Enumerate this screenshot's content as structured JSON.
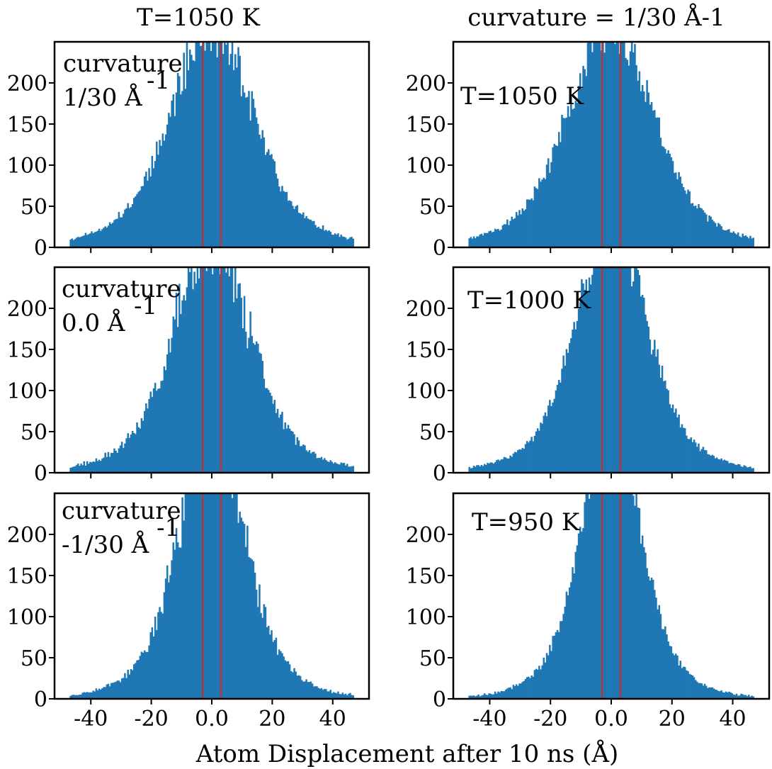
{
  "figure": {
    "column_titles": [
      "T=1050 K",
      "curvature = 1/30 Å-1"
    ],
    "xlabel": "Atom Displacement after 10 ns (Å)"
  },
  "colors": {
    "bar": "#1f77b4",
    "marker_line": "#d62728",
    "axis": "#000000"
  },
  "chart_data": [
    {
      "type": "bar",
      "panel": "left-top",
      "label_lines": [
        "curvature",
        "1/30 Å",
        "-1"
      ],
      "bins": {
        "start": -47,
        "end": 47,
        "count": 188
      },
      "sigma": 12.6,
      "peak": 265,
      "noise": 0.15,
      "seed": 11,
      "xlim": [
        -52,
        52
      ],
      "ylim": [
        0,
        250
      ],
      "xticks": [
        -40,
        -20,
        0,
        20,
        40
      ],
      "xtick_labels": [
        "-40",
        "-20",
        "0.0",
        "20",
        "40"
      ],
      "yticks": [
        0,
        50,
        100,
        150,
        200
      ],
      "ytick_labels": [
        "0",
        "50",
        "100",
        "150",
        "200"
      ],
      "vlines": [
        -3,
        3
      ],
      "show_xticklabels": false
    },
    {
      "type": "bar",
      "panel": "right-top",
      "label_lines": [
        "T=1050 K"
      ],
      "bins": {
        "start": -47,
        "end": 47,
        "count": 188
      },
      "sigma": 12.9,
      "peak": 265,
      "noise": 0.14,
      "seed": 23,
      "xlim": [
        -52,
        52
      ],
      "ylim": [
        0,
        250
      ],
      "xticks": [
        -40,
        -20,
        0,
        20,
        40
      ],
      "xtick_labels": [
        "-40",
        "-20",
        "0.0",
        "20",
        "40"
      ],
      "yticks": [
        0,
        50,
        100,
        150,
        200
      ],
      "ytick_labels": [
        "0",
        "50",
        "100",
        "150",
        "200"
      ],
      "vlines": [
        -3,
        3
      ],
      "show_xticklabels": false
    },
    {
      "type": "bar",
      "panel": "left-middle",
      "label_lines": [
        "curvature",
        "0.0 Å",
        "-1"
      ],
      "bins": {
        "start": -47,
        "end": 47,
        "count": 188
      },
      "sigma": 11.4,
      "peak": 285,
      "noise": 0.2,
      "seed": 37,
      "xlim": [
        -52,
        52
      ],
      "ylim": [
        0,
        250
      ],
      "xticks": [
        -40,
        -20,
        0,
        20,
        40
      ],
      "xtick_labels": [
        "-40",
        "-20",
        "0.0",
        "20",
        "40"
      ],
      "yticks": [
        0,
        50,
        100,
        150,
        200
      ],
      "ytick_labels": [
        "0",
        "50",
        "100",
        "150",
        "200"
      ],
      "vlines": [
        -3,
        3
      ],
      "show_xticklabels": false
    },
    {
      "type": "bar",
      "panel": "right-middle",
      "label_lines": [
        "T=1000 K"
      ],
      "bins": {
        "start": -47,
        "end": 47,
        "count": 188
      },
      "sigma": 10.7,
      "peak": 300,
      "noise": 0.14,
      "seed": 41,
      "xlim": [
        -52,
        52
      ],
      "ylim": [
        0,
        250
      ],
      "xticks": [
        -40,
        -20,
        0,
        20,
        40
      ],
      "xtick_labels": [
        "-40",
        "-20",
        "0.0",
        "20",
        "40"
      ],
      "yticks": [
        0,
        50,
        100,
        150,
        200
      ],
      "ytick_labels": [
        "0",
        "50",
        "100",
        "150",
        "200"
      ],
      "vlines": [
        -3,
        3
      ],
      "show_xticklabels": false
    },
    {
      "type": "bar",
      "panel": "left-bottom",
      "label_lines": [
        "curvature",
        "-1/30 Å",
        "-1"
      ],
      "bins": {
        "start": -47,
        "end": 47,
        "count": 188
      },
      "sigma": 10.0,
      "peak": 320,
      "noise": 0.18,
      "seed": 53,
      "xlim": [
        -52,
        52
      ],
      "ylim": [
        0,
        250
      ],
      "xticks": [
        -40,
        -20,
        0,
        20,
        40
      ],
      "xtick_labels": [
        "-40",
        "-20",
        "0.0",
        "20",
        "40"
      ],
      "yticks": [
        0,
        50,
        100,
        150,
        200
      ],
      "ytick_labels": [
        "0",
        "50",
        "100",
        "150",
        "200"
      ],
      "vlines": [
        -3,
        3
      ],
      "show_xticklabels": true
    },
    {
      "type": "bar",
      "panel": "right-bottom",
      "label_lines": [
        "T=950 K"
      ],
      "bins": {
        "start": -47,
        "end": 47,
        "count": 188
      },
      "sigma": 9.0,
      "peak": 340,
      "noise": 0.12,
      "seed": 67,
      "xlim": [
        -52,
        52
      ],
      "ylim": [
        0,
        250
      ],
      "xticks": [
        -40,
        -20,
        0,
        20,
        40
      ],
      "xtick_labels": [
        "-40",
        "-20",
        "0.0",
        "20",
        "40"
      ],
      "yticks": [
        0,
        50,
        100,
        150,
        200
      ],
      "ytick_labels": [
        "0",
        "50",
        "100",
        "150",
        "200"
      ],
      "vlines": [
        -3,
        3
      ],
      "show_xticklabels": true
    }
  ]
}
